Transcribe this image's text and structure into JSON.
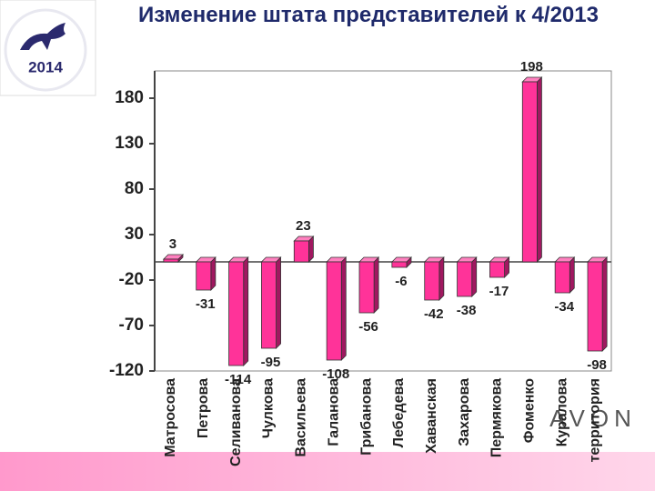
{
  "chart_data": {
    "type": "bar",
    "title": "Изменение штата представителей к 4/2013",
    "logo_text": "2014",
    "brand": "AVON",
    "categories": [
      "Матросова",
      "Петрова",
      "Селиванова",
      "Чулкова",
      "Васильева",
      "Галанова",
      "Грибанова",
      "Лебедева",
      "Хаванская",
      "Захарова",
      "Пермякова",
      "Фоменко",
      "Куралова",
      "территория"
    ],
    "values": [
      3,
      -31,
      -114,
      -95,
      23,
      -108,
      -56,
      -6,
      -42,
      -38,
      -17,
      198,
      -34,
      -98
    ],
    "color": "#ff3399",
    "ylim": [
      -120,
      210
    ],
    "yticks": [
      -120,
      -70,
      -20,
      30,
      80,
      130,
      180
    ],
    "grid": false
  }
}
